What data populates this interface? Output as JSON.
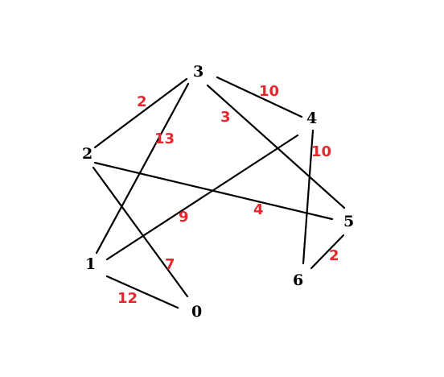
{
  "graph": {
    "nodes": [
      {
        "id": "n0",
        "label": "0"
      },
      {
        "id": "n1",
        "label": "1"
      },
      {
        "id": "n2",
        "label": "2"
      },
      {
        "id": "n3",
        "label": "3"
      },
      {
        "id": "n4",
        "label": "4"
      },
      {
        "id": "n5",
        "label": "5"
      },
      {
        "id": "n6",
        "label": "6"
      }
    ],
    "edges": [
      {
        "from": "3",
        "to": "2",
        "weight": "2"
      },
      {
        "from": "3",
        "to": "4",
        "weight": "10"
      },
      {
        "from": "3",
        "to": "1",
        "weight": "13"
      },
      {
        "from": "3",
        "to": "5",
        "weight": "3"
      },
      {
        "from": "4",
        "to": "6",
        "weight": "10"
      },
      {
        "from": "4",
        "to": "1",
        "weight": "9"
      },
      {
        "from": "2",
        "to": "5",
        "weight": "4"
      },
      {
        "from": "2",
        "to": "0",
        "weight": "7"
      },
      {
        "from": "1",
        "to": "0",
        "weight": "12"
      },
      {
        "from": "5",
        "to": "6",
        "weight": "2"
      }
    ]
  },
  "colors": {
    "edge": "#000000",
    "node_label": "#000000",
    "weight_label": "#e8262d",
    "background": "#ffffff"
  }
}
